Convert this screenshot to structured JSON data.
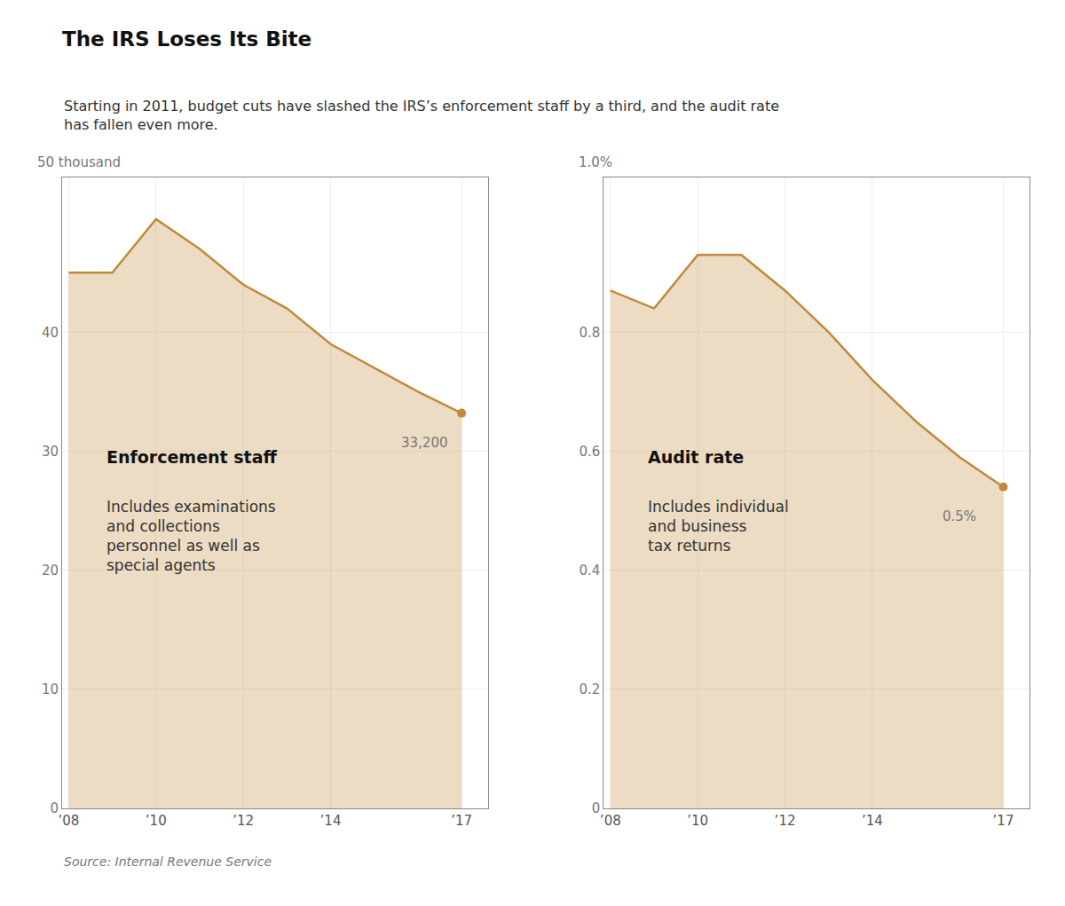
{
  "title": "The IRS Loses Its Bite",
  "subtitle": "Starting in 2011, budget cuts have slashed the IRS’s enforcement staff by a third, and the audit rate\nhas fallen even more.",
  "source": "Source: Internal Revenue Service",
  "chart_data": [
    {
      "type": "area",
      "ylabel": "50 thousand",
      "label": "Enforcement staff",
      "note": "Includes examinations\nand collections\npersonnel as well as\nspecial agents",
      "end_label": "33,200",
      "color": "#C08A3A",
      "x": [
        2008,
        2009,
        2010,
        2011,
        2012,
        2013,
        2014,
        2015,
        2016,
        2017
      ],
      "values": [
        45.0,
        45.0,
        49.5,
        47.0,
        44.0,
        42.0,
        39.0,
        37.0,
        35.0,
        33.2
      ],
      "xlim": [
        2007.85,
        2017.6
      ],
      "xticks": [
        {
          "value": 2008,
          "label": "’08"
        },
        {
          "value": 2010,
          "label": "’10"
        },
        {
          "value": 2012,
          "label": "’12"
        },
        {
          "value": 2014,
          "label": "’14"
        },
        {
          "value": 2017,
          "label": "’17"
        }
      ],
      "ylim": [
        0,
        53
      ],
      "yticks": [
        0,
        10,
        20,
        30,
        40
      ],
      "grid": true
    },
    {
      "type": "area",
      "ylabel": "1.0%",
      "label": "Audit rate",
      "note": "Includes individual\nand business\ntax returns",
      "end_label": "0.5%",
      "color": "#C08A3A",
      "x": [
        2008,
        2009,
        2010,
        2011,
        2012,
        2013,
        2014,
        2015,
        2016,
        2017
      ],
      "values": [
        0.87,
        0.84,
        0.93,
        0.93,
        0.87,
        0.8,
        0.72,
        0.65,
        0.59,
        0.54
      ],
      "xlim": [
        2007.85,
        2017.6
      ],
      "xticks": [
        {
          "value": 2008,
          "label": "’08"
        },
        {
          "value": 2010,
          "label": "’10"
        },
        {
          "value": 2012,
          "label": "’12"
        },
        {
          "value": 2014,
          "label": "’14"
        },
        {
          "value": 2017,
          "label": "’17"
        }
      ],
      "ylim": [
        0,
        1.06
      ],
      "yticks": [
        0,
        0.2,
        0.4,
        0.6,
        0.8
      ],
      "grid": true
    }
  ]
}
